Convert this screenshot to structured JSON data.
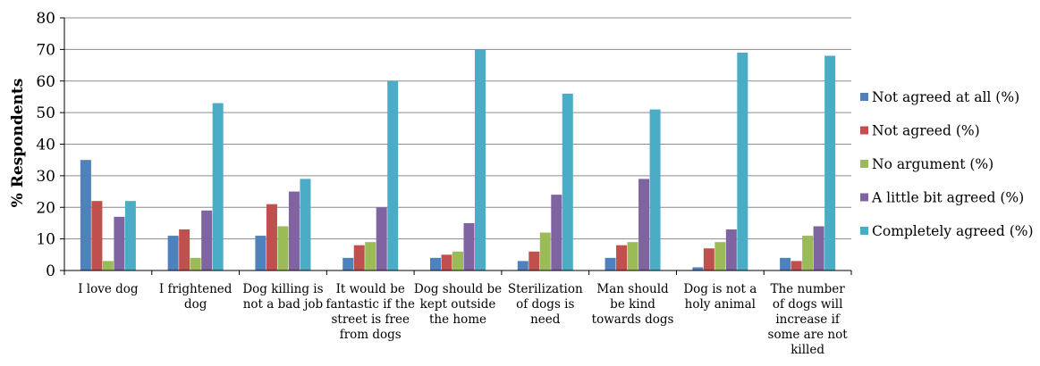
{
  "chart_data": {
    "type": "bar",
    "title": "",
    "xlabel": "",
    "ylabel": "% Respondents",
    "ylim": [
      0,
      80
    ],
    "yticks": [
      "0",
      "10",
      "20",
      "30",
      "40",
      "50",
      "60",
      "70",
      "80"
    ],
    "grid": true,
    "legend_position": "right",
    "categories": [
      "I love dog",
      "I frightened dog",
      "Dog killing is not a bad job",
      "It would be fantastic if the street is free from dogs",
      "Dog should be kept outside the home",
      "Sterilization of dogs is need",
      "Man should be kind towards dogs",
      "Dog is not a holy animal",
      "The number of dogs will increase if some are not killed"
    ],
    "category_lines": [
      [
        "I love dog"
      ],
      [
        "I frightened",
        "dog"
      ],
      [
        "Dog killing is",
        "not a bad job"
      ],
      [
        "It would be",
        "fantastic if the",
        "street is free",
        "from dogs"
      ],
      [
        "Dog should be",
        "kept outside",
        "the home"
      ],
      [
        "Sterilization",
        "of dogs is",
        "need"
      ],
      [
        "Man should",
        "be kind",
        "towards dogs"
      ],
      [
        "Dog is not a",
        "holy animal"
      ],
      [
        "The number",
        "of dogs will",
        "increase if",
        "some are not",
        "killed"
      ]
    ],
    "series": [
      {
        "name": "Not agreed at all (%)",
        "color": "#4f81bd",
        "values": [
          35,
          11,
          11,
          4,
          4,
          3,
          4,
          1,
          4
        ]
      },
      {
        "name": "Not agreed (%)",
        "color": "#c0504d",
        "values": [
          22,
          13,
          21,
          8,
          5,
          6,
          8,
          7,
          3
        ]
      },
      {
        "name": "No argument (%)",
        "color": "#9bbb59",
        "values": [
          3,
          4,
          14,
          9,
          6,
          12,
          9,
          9,
          11
        ]
      },
      {
        "name": "A little bit agreed (%)",
        "color": "#8064a2",
        "values": [
          17,
          19,
          25,
          20,
          15,
          24,
          29,
          13,
          14
        ]
      },
      {
        "name": "Completely agreed (%)",
        "color": "#4bacc6",
        "values": [
          22,
          53,
          29,
          60,
          70,
          56,
          51,
          69,
          68
        ]
      }
    ]
  }
}
